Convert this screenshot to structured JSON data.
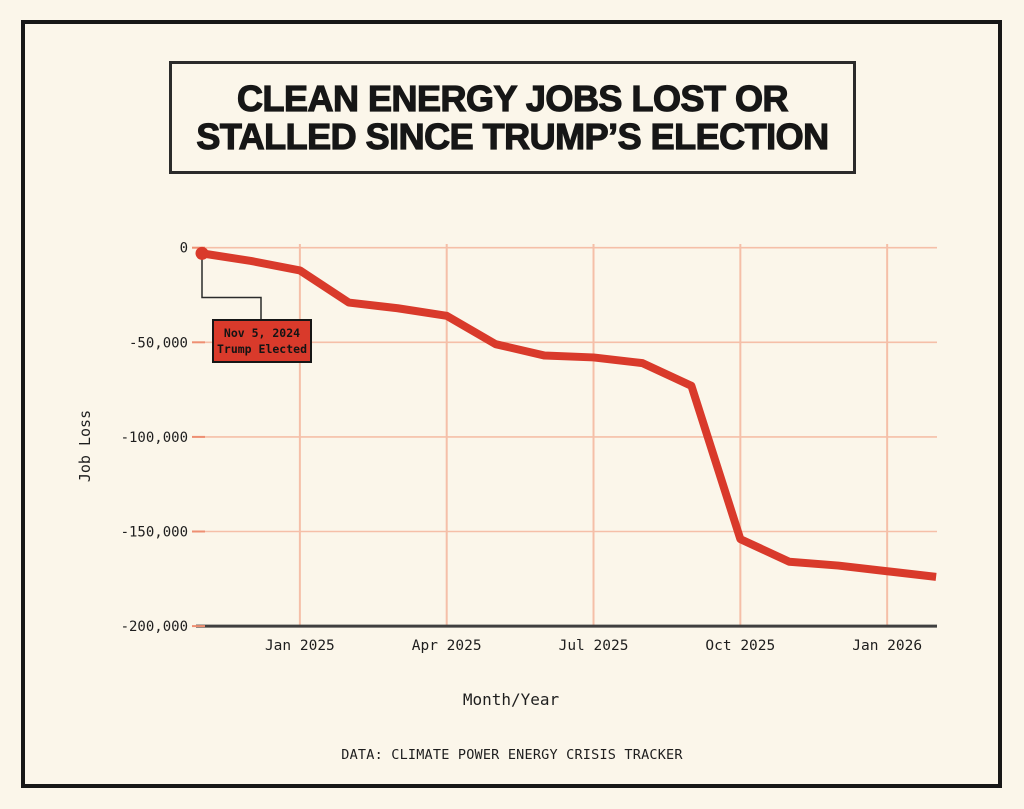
{
  "page": {
    "background_color": "#fbf6ea",
    "frame_color": "#171717"
  },
  "title": {
    "line1": "CLEAN ENERGY JOBS LOST OR",
    "line2": "STALLED SINCE TRUMP’S ELECTION"
  },
  "footer": {
    "credit": "DATA: CLIMATE POWER ENERGY CRISIS TRACKER"
  },
  "chart_data": {
    "type": "line",
    "title": "Clean Energy Jobs Lost or Stalled Since Trump's Election",
    "xlabel": "Month/Year",
    "ylabel": "Job Loss",
    "ylim": [
      -200000,
      0
    ],
    "grid": true,
    "legend": false,
    "line_color": "#d93a2b",
    "grid_color": "#f5bfa8",
    "tick_color": "#ee8f72",
    "axis_color": "#3f3f3f",
    "label_color": "#1e1e1e",
    "x": [
      "Nov 2024",
      "Dec 2024",
      "Jan 2025",
      "Feb 2025",
      "Mar 2025",
      "Apr 2025",
      "May 2025",
      "Jun 2025",
      "Jul 2025",
      "Aug 2025",
      "Sep 2025",
      "Oct 2025",
      "Nov 2025",
      "Dec 2025",
      "Jan 2026",
      "Feb 2026"
    ],
    "values": [
      -3000,
      -7000,
      -12000,
      -29000,
      -32000,
      -36000,
      -51000,
      -57000,
      -58000,
      -61000,
      -73000,
      -154000,
      -166000,
      -168000,
      -171000,
      -174000
    ],
    "yticks": [
      {
        "label": "0",
        "value": 0
      },
      {
        "label": "-50,000",
        "value": -50000
      },
      {
        "label": "-100,000",
        "value": -100000
      },
      {
        "label": "-150,000",
        "value": -150000
      },
      {
        "label": "-200,000",
        "value": -200000
      }
    ],
    "xticks": [
      {
        "label": "Jan 2025",
        "index": 2
      },
      {
        "label": "Apr 2025",
        "index": 5
      },
      {
        "label": "Jul 2025",
        "index": 8
      },
      {
        "label": "Oct 2025",
        "index": 11
      },
      {
        "label": "Jan 2026",
        "index": 14
      }
    ],
    "annotation": {
      "line1": "Nov 5, 2024",
      "line2": "Trump Elected",
      "point_index": 0,
      "fill": "#d93a2b",
      "border_color": "#161616"
    }
  }
}
